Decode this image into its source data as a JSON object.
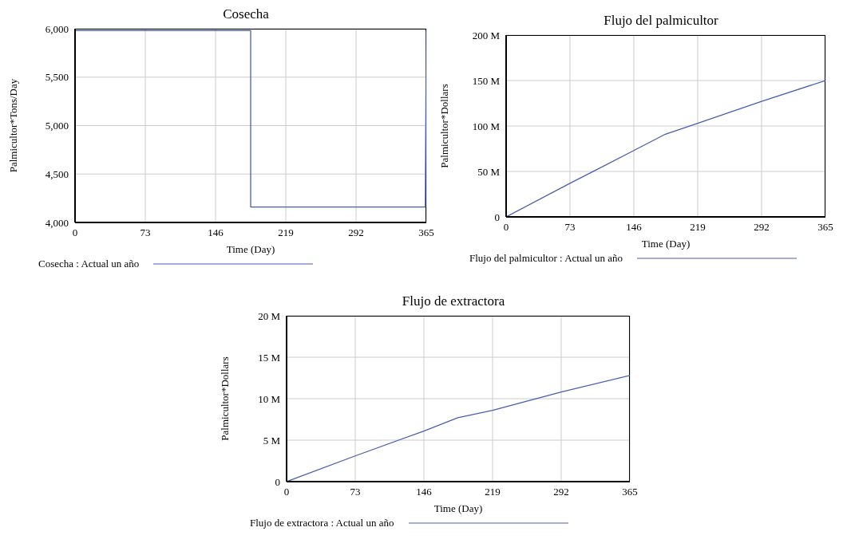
{
  "chart_data": [
    {
      "type": "line",
      "title": "Cosecha",
      "xlabel": "Time (Day)",
      "ylabel": "Palmicultor*Tons/Day",
      "legend": "bottom",
      "grid": true,
      "marker": "none",
      "line_style": "solid",
      "xlim": [
        0,
        365
      ],
      "xticks": [
        0,
        73,
        146,
        219,
        292,
        365
      ],
      "ylim": [
        4000,
        6000
      ],
      "yticks": [
        {
          "value": 4000,
          "label": "4,000"
        },
        {
          "value": 4500,
          "label": "4,500"
        },
        {
          "value": 5000,
          "label": "5,000"
        },
        {
          "value": 5500,
          "label": "5,500"
        },
        {
          "value": 6000,
          "label": "6,000"
        }
      ],
      "series": [
        {
          "name": "Cosecha : Actual un año",
          "color": "#4a5eb0",
          "x": [
            0,
            182.5,
            182.5,
            364,
            365
          ],
          "values": [
            5980,
            5980,
            4160,
            4160,
            5980
          ]
        }
      ]
    },
    {
      "type": "line",
      "title": "Flujo del palmicultor",
      "xlabel": "Time (Day)",
      "ylabel": "Palmicultor*Dollars",
      "legend": "bottom",
      "grid": true,
      "marker": "none",
      "line_style": "solid",
      "xlim": [
        0,
        365
      ],
      "xticks": [
        0,
        73,
        146,
        219,
        292,
        365
      ],
      "ylim": [
        0,
        200000000
      ],
      "yticks": [
        0,
        {
          "value": 50000000,
          "label": "50 M"
        },
        {
          "value": 100000000,
          "label": "100 M"
        },
        {
          "value": 150000000,
          "label": "150 M"
        },
        {
          "value": 200000000,
          "label": "200 M"
        }
      ],
      "series": [
        {
          "name": "Flujo del palmicultor : Actual un año",
          "color": "#4a5eb0",
          "x": [
            0,
            73,
            146,
            182,
            219,
            292,
            365
          ],
          "values": [
            0,
            37000000,
            73000000,
            91000000,
            103000000,
            127000000,
            150000000
          ]
        }
      ]
    },
    {
      "type": "line",
      "title": "Flujo de extractora",
      "xlabel": "Time (Day)",
      "ylabel": "Palmicultor*Dollars",
      "legend": "bottom",
      "grid": true,
      "marker": "none",
      "line_style": "solid",
      "xlim": [
        0,
        365
      ],
      "xticks": [
        0,
        73,
        146,
        219,
        292,
        365
      ],
      "ylim": [
        0,
        20000000
      ],
      "yticks": [
        0,
        {
          "value": 5000000,
          "label": "5 M"
        },
        {
          "value": 10000000,
          "label": "10 M"
        },
        {
          "value": 15000000,
          "label": "15 M"
        },
        {
          "value": 20000000,
          "label": "20 M"
        }
      ],
      "series": [
        {
          "name": "Flujo de extractora : Actual un año",
          "color": "#4a5eb0",
          "x": [
            0,
            73,
            146,
            182,
            219,
            292,
            365
          ],
          "values": [
            0,
            3100000,
            6100000,
            7700000,
            8600000,
            10800000,
            12800000
          ]
        }
      ]
    }
  ]
}
